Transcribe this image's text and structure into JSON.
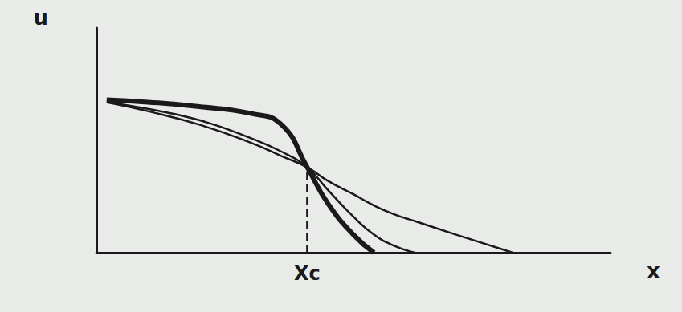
{
  "chart_data": {
    "type": "line",
    "x_label": "x",
    "y_label": "u",
    "x": [
      2,
      10,
      20,
      30,
      36,
      41,
      45,
      50,
      54,
      58,
      62,
      70,
      81
    ],
    "series": [
      {
        "color": "#1a1a1a",
        "values": [
          68,
          67,
          65,
          62,
          57,
          38,
          22,
          8,
          0,
          null,
          null,
          null,
          null
        ]
      },
      {
        "color": "#1a1a1a",
        "values": [
          67,
          64,
          59,
          51,
          45,
          38,
          28,
          16,
          8,
          3,
          0,
          null,
          null
        ]
      },
      {
        "color": "#1a1a1a",
        "values": [
          67,
          63,
          57,
          49,
          43,
          38,
          32,
          26,
          21,
          17,
          14,
          8,
          0
        ]
      }
    ],
    "annotations": [
      {
        "text": "Xc",
        "x": 41,
        "y": 38
      }
    ],
    "xlim": [
      0,
      100
    ],
    "ylim": [
      0,
      100
    ],
    "tick_labels": false,
    "grid": false
  }
}
